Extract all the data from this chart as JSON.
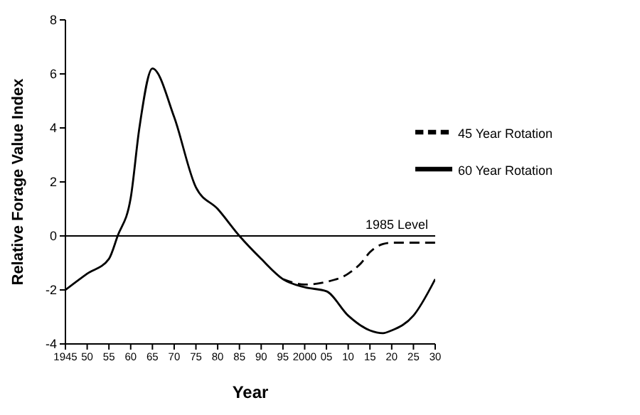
{
  "chart_data": {
    "type": "line",
    "xlabel": "Year",
    "ylabel": "Relative Forage Value Index",
    "xlim": [
      1945,
      2030
    ],
    "ylim": [
      -4,
      8
    ],
    "xticks": [
      {
        "value": 1945,
        "label": "1945"
      },
      {
        "value": 1950,
        "label": "50"
      },
      {
        "value": 1955,
        "label": "55"
      },
      {
        "value": 1960,
        "label": "60"
      },
      {
        "value": 1965,
        "label": "65"
      },
      {
        "value": 1970,
        "label": "70"
      },
      {
        "value": 1975,
        "label": "75"
      },
      {
        "value": 1980,
        "label": "80"
      },
      {
        "value": 1985,
        "label": "85"
      },
      {
        "value": 1990,
        "label": "90"
      },
      {
        "value": 1995,
        "label": "95"
      },
      {
        "value": 2000,
        "label": "2000"
      },
      {
        "value": 2005,
        "label": "05"
      },
      {
        "value": 2010,
        "label": "10"
      },
      {
        "value": 2015,
        "label": "15"
      },
      {
        "value": 2020,
        "label": "20"
      },
      {
        "value": 2025,
        "label": "25"
      },
      {
        "value": 2030,
        "label": "30"
      }
    ],
    "yticks": [
      -4,
      -2,
      0,
      2,
      4,
      6,
      8
    ],
    "grid": false,
    "legend": "right",
    "marker": "none",
    "ref_lines": [
      {
        "axis": "y",
        "value": 0,
        "label": "1985 Level",
        "color": "#000000"
      }
    ],
    "series": [
      {
        "name": "45 Year Rotation",
        "color": "#000000",
        "line_style": "dashed",
        "x": [
          1995,
          2000,
          2005,
          2010,
          2013,
          2015,
          2018,
          2020,
          2025,
          2030
        ],
        "values": [
          -1.6,
          -1.8,
          -1.7,
          -1.4,
          -1.0,
          -0.6,
          -0.3,
          -0.25,
          -0.25,
          -0.25
        ]
      },
      {
        "name": "60 Year Rotation",
        "color": "#000000",
        "line_style": "solid",
        "x": [
          1945,
          1950,
          1955,
          1957,
          1960,
          1962,
          1965,
          1970,
          1975,
          1980,
          1985,
          1990,
          1995,
          2000,
          2005,
          2010,
          2015,
          2018,
          2020,
          2025,
          2030
        ],
        "values": [
          -2.0,
          -1.4,
          -0.85,
          0,
          1.4,
          4.0,
          6.2,
          4.4,
          1.8,
          1.0,
          0,
          -0.85,
          -1.6,
          -1.9,
          -2.05,
          -2.95,
          -3.5,
          -3.6,
          -3.5,
          -2.95,
          -1.6
        ]
      }
    ]
  }
}
